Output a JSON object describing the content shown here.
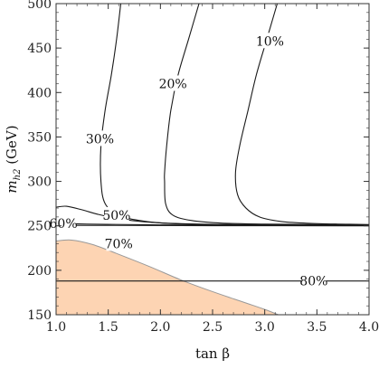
{
  "chart_data": {
    "type": "contour",
    "xlabel": "tan β",
    "ylabel": "m_{h2} (GeV)",
    "xlim": [
      1.0,
      4.0
    ],
    "ylim": [
      150,
      500
    ],
    "x_ticks": [
      "1.0",
      "1.5",
      "2.0",
      "2.5",
      "3.0",
      "3.5",
      "4.0"
    ],
    "y_ticks": [
      "150",
      "200",
      "250",
      "300",
      "350",
      "400",
      "450",
      "500"
    ],
    "grid": false,
    "line_color": "#1a1a1a",
    "fill_color": "#fdd4b3",
    "fill_edge_color": "#999999",
    "excluded_region": {
      "label": "",
      "boundary": [
        [
          1.0,
          233
        ],
        [
          1.15,
          234
        ],
        [
          1.35,
          229
        ],
        [
          1.6,
          218
        ],
        [
          1.9,
          204
        ],
        [
          2.2,
          189
        ],
        [
          2.5,
          176
        ],
        [
          2.8,
          164
        ],
        [
          3.0,
          156
        ],
        [
          3.13,
          150
        ],
        [
          1.0,
          150
        ]
      ]
    },
    "series": [
      {
        "name": "10%",
        "points": [
          [
            4.0,
            251.5
          ],
          [
            3.7,
            252
          ],
          [
            3.4,
            253
          ],
          [
            3.15,
            255
          ],
          [
            2.95,
            260
          ],
          [
            2.82,
            270
          ],
          [
            2.74,
            285
          ],
          [
            2.72,
            310
          ],
          [
            2.76,
            340
          ],
          [
            2.84,
            380
          ],
          [
            2.92,
            420
          ],
          [
            3.02,
            460
          ],
          [
            3.12,
            500
          ]
        ],
        "label_pos": [
          3.05,
          458
        ]
      },
      {
        "name": "20%",
        "points": [
          [
            4.0,
            251
          ],
          [
            3.5,
            251.5
          ],
          [
            3.0,
            252
          ],
          [
            2.6,
            253
          ],
          [
            2.3,
            256
          ],
          [
            2.12,
            262
          ],
          [
            2.05,
            275
          ],
          [
            2.04,
            300
          ],
          [
            2.04,
            310
          ],
          [
            2.06,
            340
          ],
          [
            2.1,
            380
          ],
          [
            2.17,
            420
          ],
          [
            2.27,
            460
          ],
          [
            2.37,
            500
          ]
        ],
        "label_pos": [
          2.12,
          410
        ]
      },
      {
        "name": "30%",
        "points": [
          [
            4.0,
            250.5
          ],
          [
            3.5,
            251
          ],
          [
            3.0,
            251
          ],
          [
            2.5,
            251.5
          ],
          [
            2.1,
            252.5
          ],
          [
            1.8,
            256
          ],
          [
            1.6,
            262
          ],
          [
            1.47,
            275
          ],
          [
            1.43,
            300
          ],
          [
            1.43,
            340
          ],
          [
            1.47,
            380
          ],
          [
            1.53,
            420
          ],
          [
            1.58,
            460
          ],
          [
            1.62,
            500
          ]
        ],
        "label_pos": [
          1.42,
          348
        ]
      },
      {
        "name": "50%",
        "points": [
          [
            1.0,
            271
          ],
          [
            1.1,
            272
          ],
          [
            1.25,
            268
          ],
          [
            1.4,
            263
          ],
          [
            1.6,
            258
          ],
          [
            1.85,
            254.5
          ],
          [
            2.2,
            252.5
          ],
          [
            2.7,
            251.5
          ],
          [
            3.3,
            251
          ],
          [
            4.0,
            250.5
          ]
        ],
        "label_pos": [
          1.58,
          262
        ]
      },
      {
        "name": "60%",
        "points": [
          [
            1.0,
            253
          ],
          [
            1.3,
            252
          ],
          [
            2.0,
            251
          ],
          [
            3.0,
            250.5
          ],
          [
            4.0,
            250.3
          ]
        ],
        "label_pos": [
          1.07,
          253
        ]
      },
      {
        "name": "70%",
        "points": [
          [
            1.0,
            250.5
          ],
          [
            1.5,
            250.5
          ],
          [
            2.5,
            250.2
          ],
          [
            4.0,
            250
          ]
        ],
        "label_pos": [
          1.6,
          230
        ]
      },
      {
        "name": "80%",
        "points": [
          [
            1.0,
            188
          ],
          [
            4.0,
            188
          ]
        ],
        "label_pos": [
          3.47,
          188
        ]
      }
    ]
  }
}
